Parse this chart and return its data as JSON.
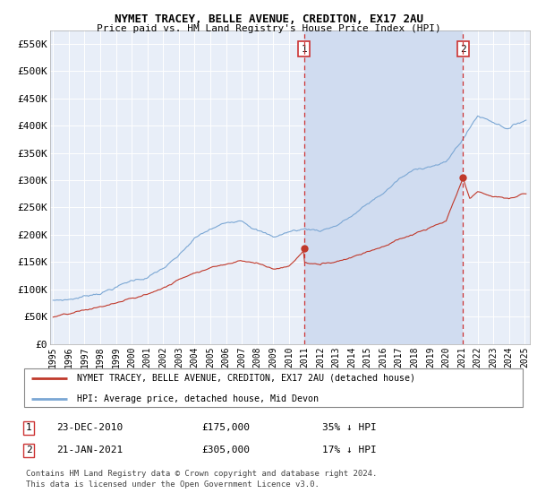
{
  "title": "NYMET TRACEY, BELLE AVENUE, CREDITON, EX17 2AU",
  "subtitle": "Price paid vs. HM Land Registry's House Price Index (HPI)",
  "ylabel_ticks": [
    "£0",
    "£50K",
    "£100K",
    "£150K",
    "£200K",
    "£250K",
    "£300K",
    "£350K",
    "£400K",
    "£450K",
    "£500K",
    "£550K"
  ],
  "ytick_values": [
    0,
    50000,
    100000,
    150000,
    200000,
    250000,
    300000,
    350000,
    400000,
    450000,
    500000,
    550000
  ],
  "ylim": [
    0,
    575000
  ],
  "hpi_color": "#7ba7d4",
  "property_color": "#c0392b",
  "vline_color": "#cc3333",
  "background_color": "#e8eef8",
  "shade_color": "#d0dcf0",
  "marker1_year": 2010.97,
  "marker2_year": 2021.06,
  "marker1_label": "1",
  "marker2_label": "2",
  "marker1_price": 175000,
  "marker2_price": 305000,
  "legend_property": "NYMET TRACEY, BELLE AVENUE, CREDITON, EX17 2AU (detached house)",
  "legend_hpi": "HPI: Average price, detached house, Mid Devon",
  "annotation1": [
    "1",
    "23-DEC-2010",
    "£175,000",
    "35% ↓ HPI"
  ],
  "annotation2": [
    "2",
    "21-JAN-2021",
    "£305,000",
    "17% ↓ HPI"
  ],
  "footer": [
    "Contains HM Land Registry data © Crown copyright and database right 2024.",
    "This data is licensed under the Open Government Licence v3.0."
  ]
}
